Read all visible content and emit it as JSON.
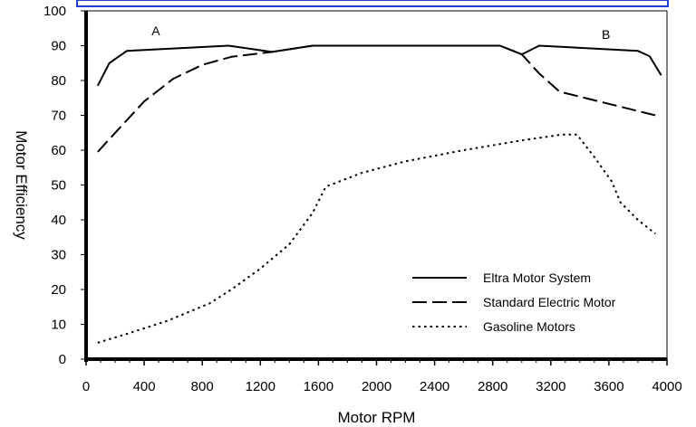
{
  "chart_data": {
    "type": "line",
    "xlabel": "Motor RPM",
    "ylabel": "Motor Efficiency",
    "xlim": [
      0,
      4000
    ],
    "ylim": [
      0,
      100
    ],
    "x_ticks": [
      "0",
      "400",
      "800",
      "1200",
      "1600",
      "2000",
      "2400",
      "2800",
      "3200",
      "3600",
      "4000"
    ],
    "y_ticks": [
      "0",
      "10",
      "20",
      "30",
      "40",
      "50",
      "60",
      "70",
      "80",
      "90",
      "100"
    ],
    "grid": false,
    "legend_position": "bottom-right",
    "annotations": [
      {
        "text": "A",
        "x": 480,
        "y": 93
      },
      {
        "text": "B",
        "x": 3580,
        "y": 92
      }
    ],
    "series": [
      {
        "name": "Eltra Motor System",
        "style": "solid",
        "color": "#000000",
        "points": [
          [
            80,
            78.5
          ],
          [
            160,
            85
          ],
          [
            280,
            88.5
          ],
          [
            980,
            90
          ],
          [
            1280,
            88.2
          ],
          [
            1560,
            90
          ],
          [
            2850,
            90
          ],
          [
            3000,
            87.5
          ],
          [
            3120,
            90
          ],
          [
            3800,
            88.5
          ],
          [
            3880,
            87
          ],
          [
            3960,
            81.5
          ]
        ]
      },
      {
        "name": "Standard Electric Motor",
        "style": "dashed",
        "color": "#000000",
        "points": [
          [
            80,
            59.5
          ],
          [
            200,
            65
          ],
          [
            400,
            74
          ],
          [
            600,
            80.5
          ],
          [
            800,
            84.5
          ],
          [
            1000,
            86.8
          ],
          [
            1280,
            88.2
          ],
          [
            1560,
            90
          ],
          [
            2850,
            90
          ],
          [
            3000,
            87.5
          ],
          [
            3120,
            82
          ],
          [
            3260,
            76.8
          ],
          [
            3920,
            70
          ]
        ]
      },
      {
        "name": "Gasoline Motors",
        "style": "dotted",
        "color": "#000000",
        "points": [
          [
            80,
            4.7
          ],
          [
            300,
            7.5
          ],
          [
            560,
            11
          ],
          [
            850,
            16
          ],
          [
            1000,
            20
          ],
          [
            1200,
            26
          ],
          [
            1400,
            33
          ],
          [
            1560,
            42
          ],
          [
            1650,
            49.5
          ],
          [
            1900,
            53.5
          ],
          [
            2200,
            56.8
          ],
          [
            2600,
            60
          ],
          [
            3000,
            62.8
          ],
          [
            3280,
            64.5
          ],
          [
            3380,
            64.5
          ],
          [
            3500,
            58
          ],
          [
            3620,
            51
          ],
          [
            3680,
            45
          ],
          [
            3800,
            40
          ],
          [
            3920,
            36
          ]
        ]
      }
    ]
  },
  "colors": {
    "frame_accent": "#1f3fd0",
    "axis": "#000000"
  }
}
